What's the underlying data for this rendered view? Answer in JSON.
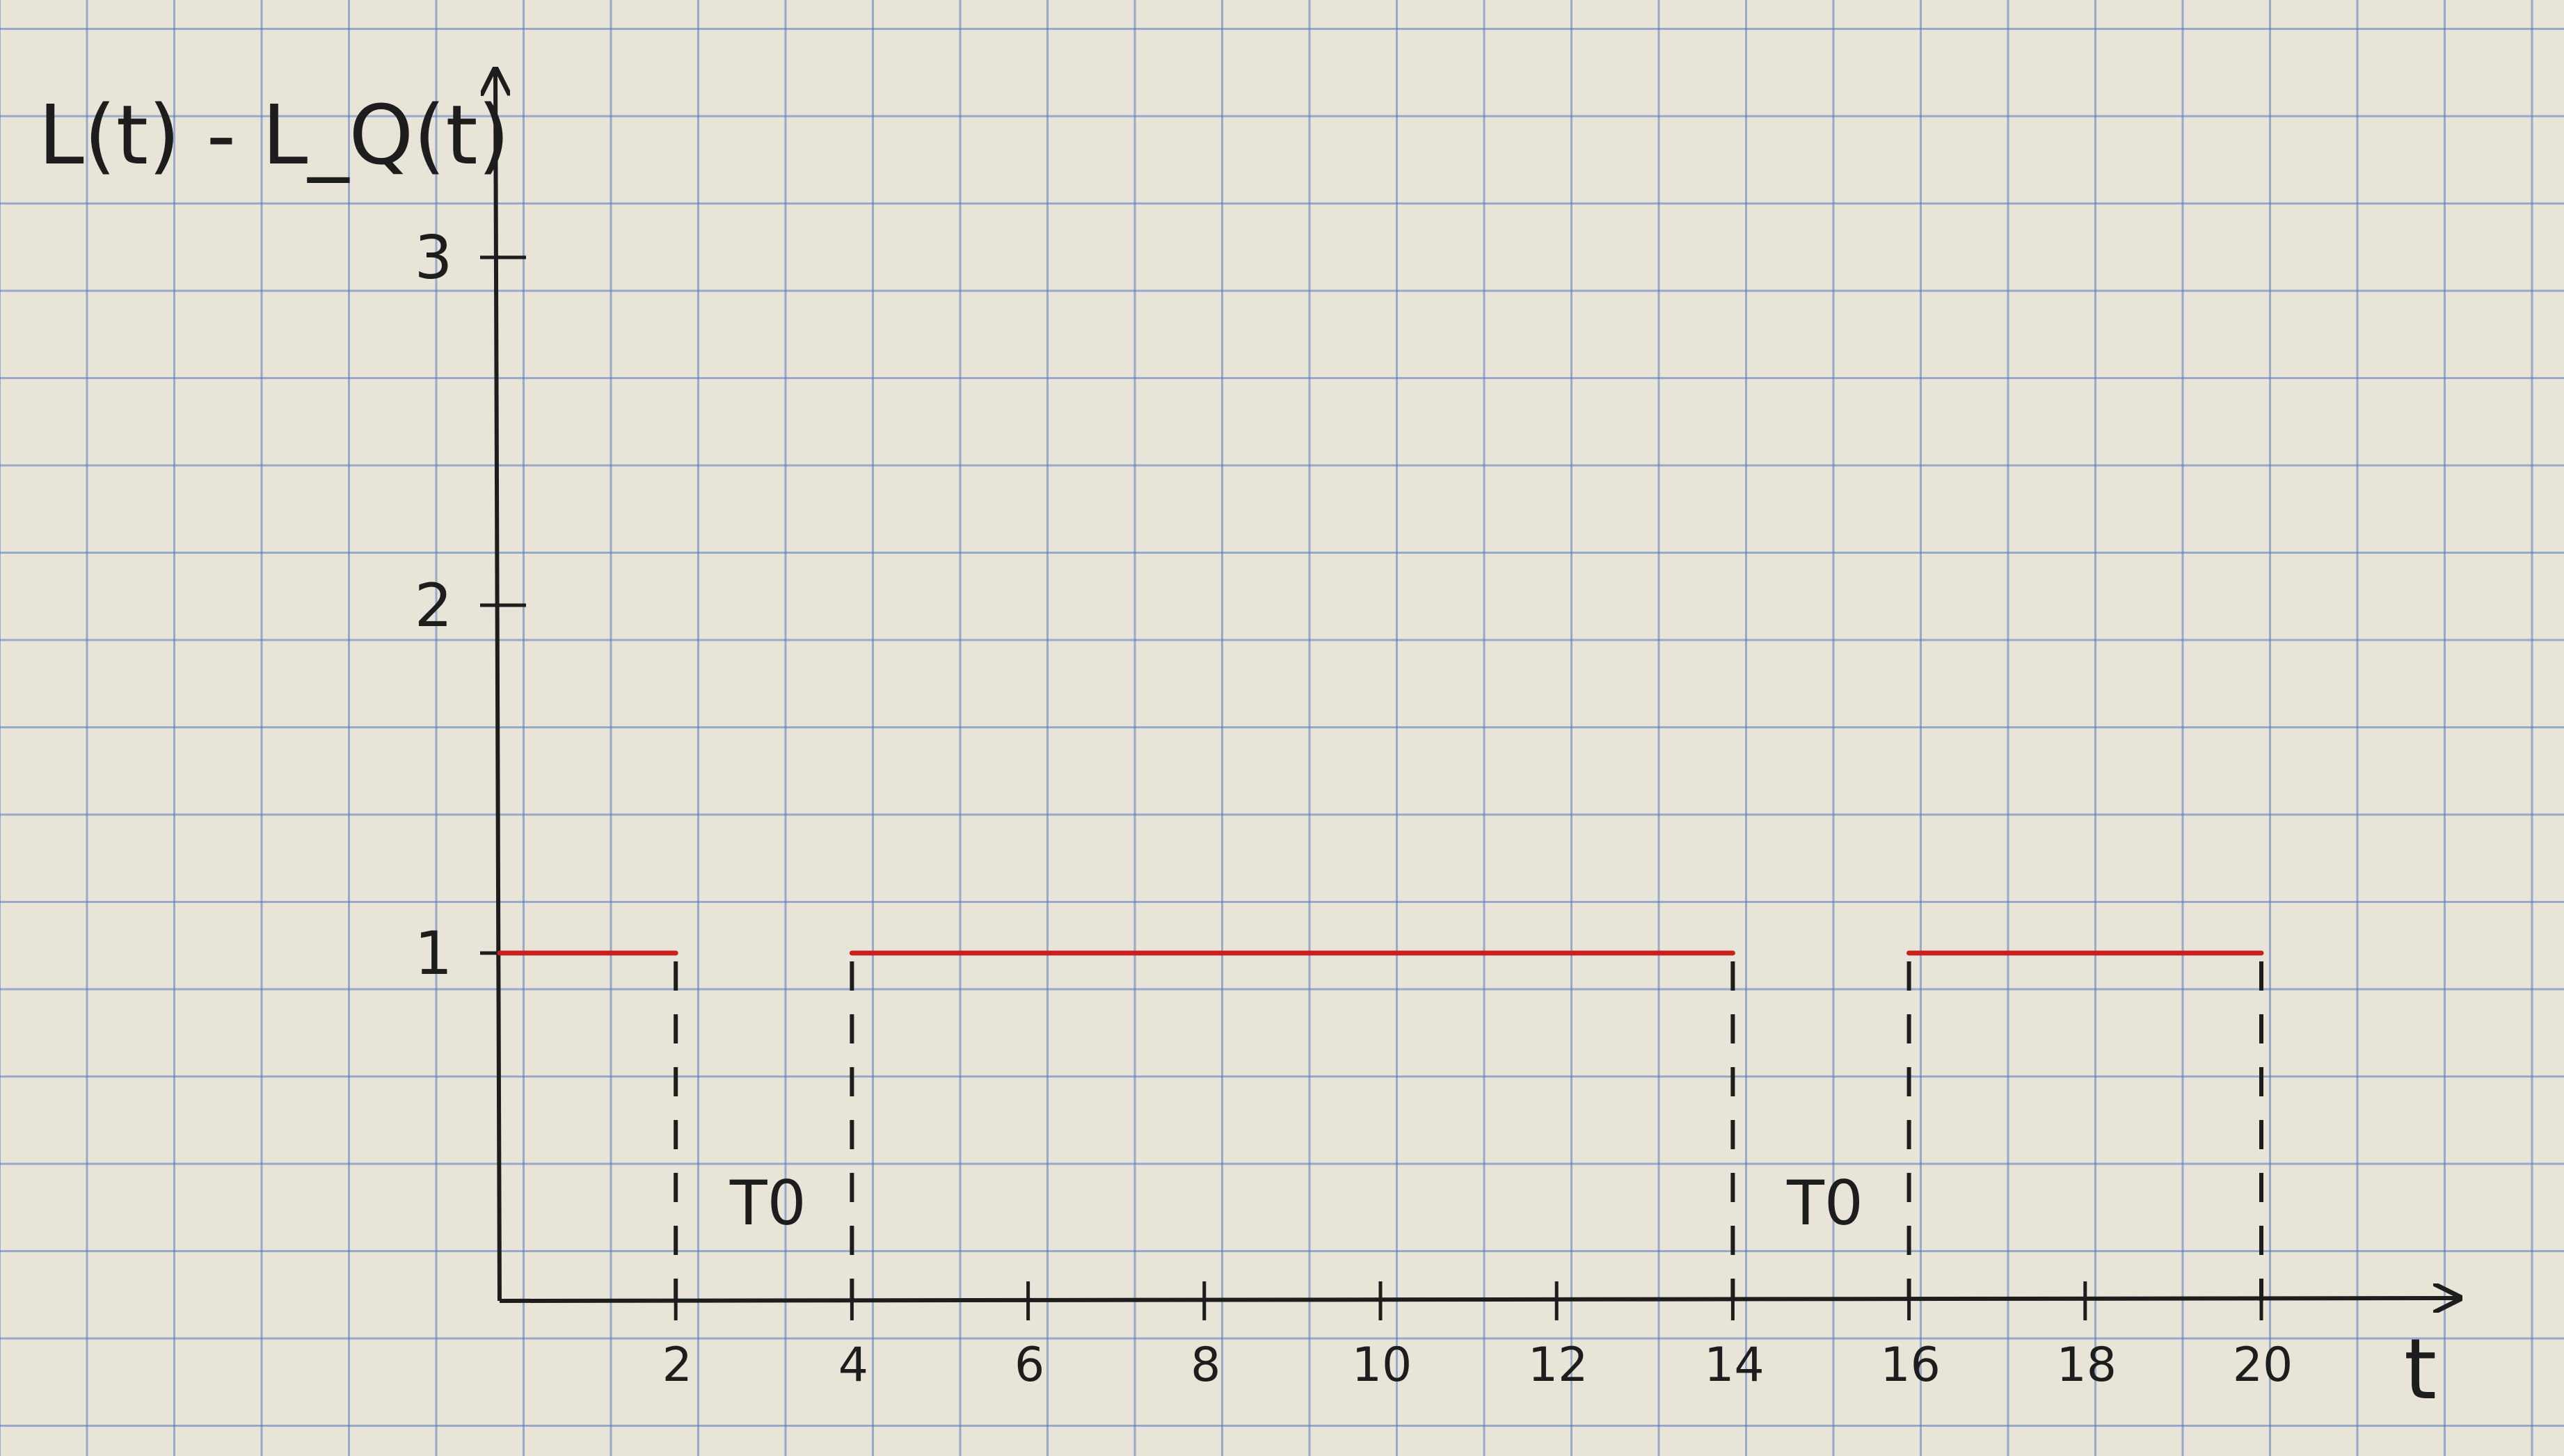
{
  "chart_data": {
    "type": "line",
    "ylabel": "L(t) - L_Q(t)",
    "xlabel": "t",
    "xlim": [
      0,
      21
    ],
    "ylim": [
      0,
      3
    ],
    "x_ticks": [
      2,
      4,
      6,
      8,
      10,
      12,
      14,
      16,
      18,
      20
    ],
    "x_tick_labels": [
      "2",
      "4",
      "6",
      "8",
      "10",
      "12",
      "14",
      "16",
      "18",
      "20"
    ],
    "y_ticks": [
      1,
      2,
      3
    ],
    "y_tick_labels": [
      "1",
      "2",
      "3"
    ],
    "series": [
      {
        "values": [
          {
            "x": 0,
            "y": 1
          },
          {
            "x": 2,
            "y": 1
          },
          {
            "x": 2,
            "y": 0
          },
          {
            "x": 4,
            "y": 0
          },
          {
            "x": 4,
            "y": 1
          },
          {
            "x": 14,
            "y": 1
          },
          {
            "x": 14,
            "y": 0
          },
          {
            "x": 16,
            "y": 0
          },
          {
            "x": 16,
            "y": 1
          },
          {
            "x": 20,
            "y": 1
          },
          {
            "x": 20,
            "y": 0
          }
        ]
      }
    ],
    "segments_at_1": [
      [
        0,
        2
      ],
      [
        4,
        14
      ],
      [
        16,
        20
      ]
    ],
    "dashed_verticals": [
      2,
      4,
      14,
      16,
      20
    ],
    "annotations": [
      {
        "text": "T0",
        "x_range": [
          2,
          4
        ]
      },
      {
        "text": "T0",
        "x_range": [
          14,
          16
        ]
      }
    ],
    "grid": true,
    "colors": {
      "segment": "#c8201e",
      "axis": "#1d1d1d",
      "grid": "#5678be",
      "paper": "#e9e4d8"
    }
  }
}
